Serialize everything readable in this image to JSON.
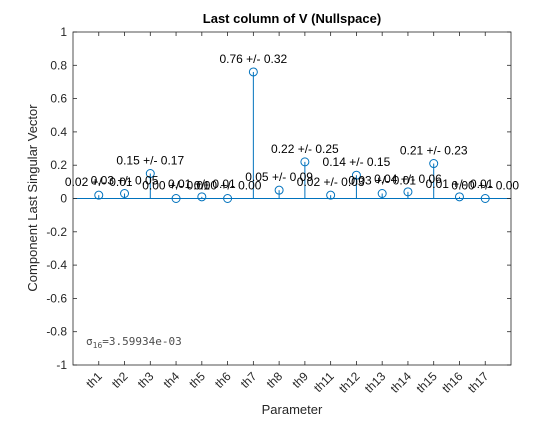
{
  "chart_data": {
    "type": "stem",
    "title": "Last column of V (Nullspace)",
    "xlabel": "Parameter",
    "ylabel": "Component Last Singular Vector",
    "categories": [
      "th1",
      "th2",
      "th3",
      "th4",
      "th5",
      "th6",
      "th7",
      "th8",
      "th9",
      "th11",
      "th12",
      "th13",
      "th14",
      "th15",
      "th16",
      "th17"
    ],
    "values": [
      0.02,
      0.03,
      0.15,
      0.0,
      0.01,
      0.0,
      0.76,
      0.05,
      0.22,
      0.02,
      0.14,
      0.03,
      0.04,
      0.21,
      0.01,
      0.0
    ],
    "data_labels": [
      "0.02 +/- 0.01",
      "0.03 +/- 0.05",
      "0.15 +/- 0.17",
      "0.00 +/- 0.01",
      "0.01 +/- 0.01",
      "0.00 +/- 0.00",
      "0.76 +/- 0.32",
      "0.05 +/- 0.09",
      "0.22 +/- 0.25",
      "0.02 +/- 0.03",
      "0.14 +/- 0.15",
      "0.03 +/- 0.01",
      "0.04 +/- 0.06",
      "0.21 +/- 0.23",
      "0.01 +/- 0.01",
      "0.00 +/- 0.00"
    ],
    "ylim": [
      -1,
      1
    ],
    "yticks": [
      -1,
      -0.8,
      -0.6,
      -0.4,
      -0.2,
      0,
      0.2,
      0.4,
      0.6,
      0.8,
      1
    ],
    "ytick_labels": [
      "-1",
      "-0.8",
      "-0.6",
      "-0.4",
      "-0.2",
      "0",
      "0.2",
      "0.4",
      "0.6",
      "0.8",
      "1"
    ],
    "grid": false,
    "legend": "none",
    "annotation": {
      "symbol": "σ",
      "subscript": "16",
      "value": "=3.59934e-03"
    }
  },
  "colors": {
    "stem": "#0072bd",
    "axis": "#262626",
    "background": "#ffffff"
  }
}
